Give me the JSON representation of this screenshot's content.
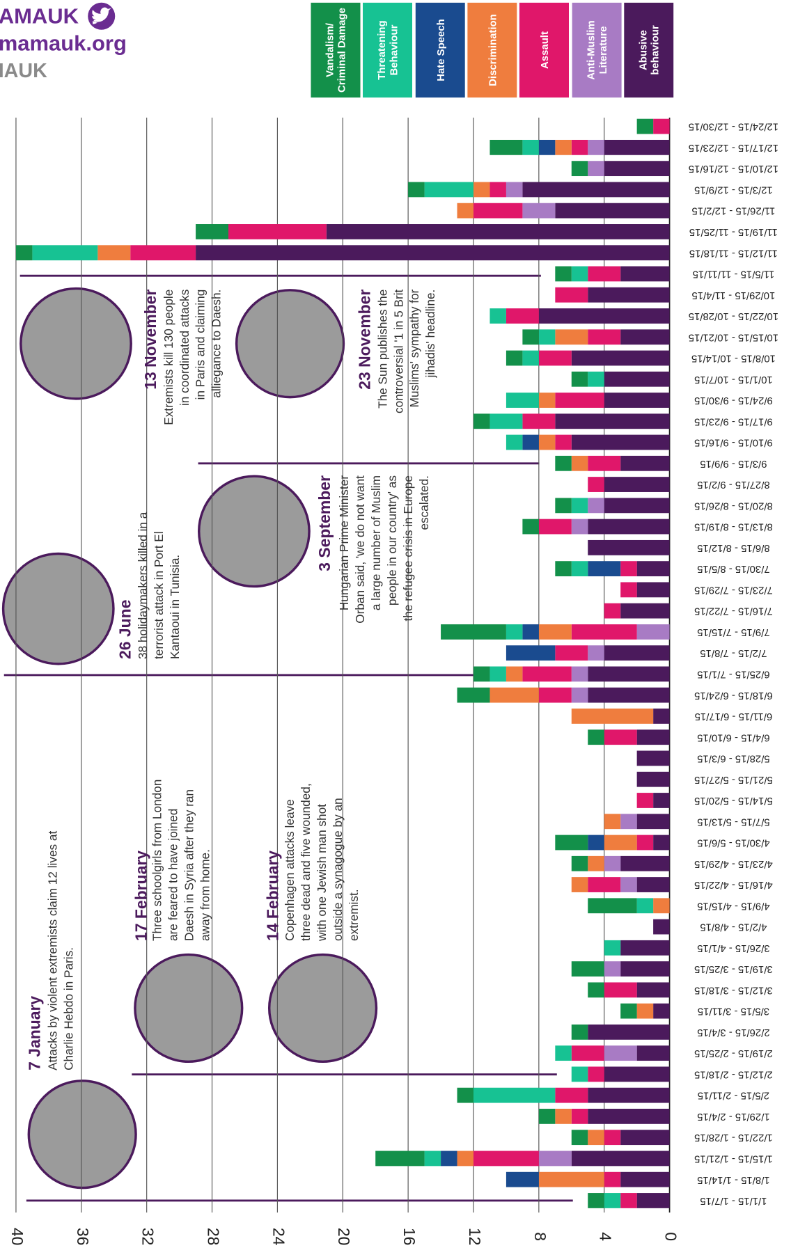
{
  "header": {
    "brand": "AMAUK",
    "site": "mamauk.org",
    "handle": "IAUK"
  },
  "chart_data": {
    "type": "bar",
    "orientation": "horizontal",
    "stacked": true,
    "grid": true,
    "x_reversed": true,
    "xlim": [
      0,
      40
    ],
    "xticks": [
      0,
      4,
      8,
      12,
      16,
      20,
      24,
      28,
      32,
      36,
      40
    ],
    "categories": [
      "1/1/15 - 1/7/15",
      "1/8/15 - 1/14/15",
      "1/15/15 - 1/21/15",
      "1/22/15 - 1/28/15",
      "1/29/15 - 2/4/15",
      "2/5/15 - 2/11/15",
      "2/12/15 - 2/18/15",
      "2/19/15 - 2/25/15",
      "2/26/15 - 3/4/15",
      "3/5/15 - 3/11/15",
      "3/12/15 - 3/18/15",
      "3/19/15 - 3/25/15",
      "3/26/15 - 4/1/15",
      "4/2/15 - 4/8/15",
      "4/9/15 - 4/15/15",
      "4/16/15 - 4/22/15",
      "4/23/15 - 4/29/15",
      "4/30/15 - 5/6/15",
      "5/7/15 - 5/13/15",
      "5/14/15 - 5/20/15",
      "5/21/15 - 5/27/15",
      "5/28/15 - 6/3/15",
      "6/4/15 - 6/10/15",
      "6/11/15 - 6/17/15",
      "6/18/15 - 6/24/15",
      "6/25/15 - 7/1/15",
      "7/2/15 - 7/8/15",
      "7/9/15 - 7/15/15",
      "7/16/15 - 7/22/15",
      "7/23/15 - 7/29/15",
      "7/30/15 - 8/5/15",
      "8/6/15 - 8/12/15",
      "8/13/15 - 8/19/15",
      "8/20/15 - 8/26/15",
      "8/27/15 - 9/2/15",
      "9/3/15 - 9/9/15",
      "9/10/15 - 9/16/15",
      "9/17/15 - 9/23/15",
      "9/24/15 - 9/30/15",
      "10/1/15 - 10/7/15",
      "10/8/15 - 10/14/15",
      "10/15/15 - 10/21/15",
      "10/22/15 - 10/28/15",
      "10/29/15 - 11/4/15",
      "11/5/15 - 11/11/15",
      "11/12/15 - 11/18/15",
      "11/19/15 - 11/25/15",
      "11/26/15 - 12/2/15",
      "12/3/15 - 12/9/15",
      "12/10/15 - 12/16/15",
      "12/17/15 - 12/23/15",
      "12/24/15 - 12/30/15"
    ],
    "series": [
      {
        "name": "Abusive behaviour",
        "color": "#4b1a5c",
        "values": [
          2,
          3,
          6,
          3,
          5,
          5,
          4,
          2,
          5,
          1,
          2,
          3,
          3,
          1,
          0,
          2,
          3,
          1,
          2,
          1,
          2,
          2,
          2,
          1,
          5,
          5,
          4,
          0,
          3,
          2,
          2,
          5,
          5,
          4,
          4,
          3,
          6,
          7,
          4,
          4,
          6,
          3,
          8,
          5,
          3,
          29,
          21,
          7,
          9,
          4,
          4,
          0
        ]
      },
      {
        "name": "Anti-Muslim Literature",
        "color": "#a87bc4",
        "values": [
          0,
          0,
          2,
          0,
          0,
          0,
          0,
          2,
          0,
          0,
          0,
          1,
          0,
          0,
          0,
          1,
          1,
          0,
          1,
          0,
          0,
          0,
          0,
          0,
          1,
          1,
          1,
          2,
          0,
          0,
          0,
          0,
          1,
          1,
          0,
          0,
          0,
          0,
          0,
          0,
          0,
          0,
          0,
          0,
          0,
          0,
          0,
          2,
          1,
          1,
          1,
          0
        ]
      },
      {
        "name": "Assault",
        "color": "#e0176a",
        "values": [
          1,
          1,
          4,
          1,
          1,
          2,
          1,
          2,
          0,
          0,
          2,
          0,
          0,
          0,
          0,
          2,
          0,
          1,
          0,
          1,
          0,
          0,
          2,
          0,
          2,
          3,
          2,
          4,
          1,
          1,
          1,
          0,
          2,
          0,
          1,
          2,
          1,
          2,
          3,
          0,
          2,
          2,
          2,
          2,
          2,
          4,
          6,
          3,
          1,
          0,
          1,
          1
        ]
      },
      {
        "name": "Discrimination",
        "color": "#ef7d3e",
        "values": [
          0,
          4,
          1,
          1,
          1,
          0,
          0,
          0,
          0,
          1,
          0,
          0,
          0,
          0,
          1,
          1,
          1,
          2,
          1,
          0,
          0,
          0,
          0,
          5,
          3,
          1,
          0,
          2,
          0,
          0,
          0,
          0,
          0,
          0,
          0,
          1,
          1,
          0,
          1,
          0,
          0,
          2,
          0,
          0,
          0,
          2,
          0,
          1,
          1,
          0,
          1,
          0
        ]
      },
      {
        "name": "Hate Speech",
        "color": "#1a4b8f",
        "values": [
          0,
          2,
          1,
          0,
          0,
          0,
          0,
          0,
          0,
          0,
          0,
          0,
          0,
          0,
          0,
          0,
          0,
          1,
          0,
          0,
          0,
          0,
          0,
          0,
          0,
          0,
          3,
          1,
          0,
          0,
          2,
          0,
          0,
          0,
          0,
          0,
          1,
          0,
          0,
          0,
          0,
          0,
          0,
          0,
          0,
          0,
          0,
          0,
          0,
          0,
          1,
          0
        ]
      },
      {
        "name": "Threatening Behaviour",
        "color": "#17c293",
        "values": [
          1,
          0,
          1,
          0,
          0,
          5,
          1,
          1,
          0,
          0,
          0,
          0,
          1,
          0,
          1,
          0,
          0,
          0,
          0,
          0,
          0,
          0,
          0,
          0,
          0,
          1,
          0,
          1,
          0,
          0,
          1,
          0,
          0,
          1,
          0,
          0,
          1,
          2,
          2,
          1,
          1,
          1,
          1,
          0,
          1,
          4,
          0,
          0,
          3,
          0,
          1,
          0
        ]
      },
      {
        "name": "Vandalism/ Criminal Damage",
        "color": "#13904a",
        "values": [
          1,
          0,
          3,
          1,
          1,
          1,
          0,
          0,
          1,
          1,
          1,
          2,
          0,
          0,
          3,
          0,
          1,
          2,
          0,
          0,
          0,
          0,
          1,
          0,
          2,
          1,
          0,
          4,
          0,
          0,
          1,
          0,
          1,
          1,
          0,
          1,
          0,
          1,
          0,
          1,
          1,
          1,
          0,
          0,
          1,
          1,
          2,
          0,
          1,
          1,
          2,
          1
        ]
      }
    ],
    "annotations": [
      {
        "date": "7 January",
        "lines": [
          "Attacks by violent extremists claim 12 lives at",
          "Charlie Hebdo in Paris."
        ]
      },
      {
        "date": "17 February",
        "lines": [
          "Three schoolgirls from London",
          "are feared to have joined",
          "Daesh in Syria after they ran",
          "away from home."
        ]
      },
      {
        "date": "14 February",
        "lines": [
          "Copenhagen attacks leave",
          "three dead and five wounded,",
          "with one Jewish man shot",
          "outside a synagogue by an",
          "extremist."
        ]
      },
      {
        "date": "26 June",
        "lines": [
          "38 holidaymakers killed in a",
          "terrorist attack in Port El",
          "Kantaoui in Tunisia."
        ]
      },
      {
        "date": "3 September",
        "lines": [
          "Hungarian Prime Minister",
          "Orban said, 'we do not want",
          "a large number of Muslim",
          "people in our country' as",
          "the refugee crisis in Europe",
          "escalated."
        ]
      },
      {
        "date": "13 November",
        "lines": [
          "Extremists kill 130 people",
          "in coordinated attacks",
          "in Paris and claiming",
          "alliegance to Daesh."
        ]
      },
      {
        "date": "23 November",
        "lines": [
          "The Sun publishes the",
          "controversial '1 in 5 Brit",
          "Muslims' sympathy for",
          "jihadis' headline."
        ]
      }
    ]
  }
}
